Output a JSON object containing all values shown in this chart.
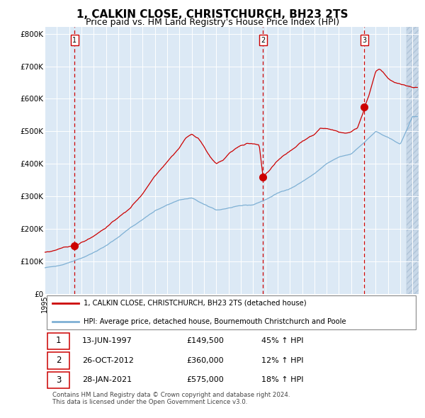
{
  "title": "1, CALKIN CLOSE, CHRISTCHURCH, BH23 2TS",
  "subtitle": "Price paid vs. HM Land Registry's House Price Index (HPI)",
  "ylabel_ticks": [
    "£0",
    "£100K",
    "£200K",
    "£300K",
    "£400K",
    "£500K",
    "£600K",
    "£700K",
    "£800K"
  ],
  "ytick_vals": [
    0,
    100000,
    200000,
    300000,
    400000,
    500000,
    600000,
    700000,
    800000
  ],
  "ylim": [
    0,
    820000
  ],
  "xlim_start": 1995.0,
  "xlim_end": 2025.5,
  "sale_dates": [
    1997.45,
    2012.82,
    2021.08
  ],
  "sale_prices": [
    149500,
    360000,
    575000
  ],
  "sale_labels": [
    "1",
    "2",
    "3"
  ],
  "sale_info": [
    {
      "num": "1",
      "date": "13-JUN-1997",
      "price": "£149,500",
      "hpi": "45% ↑ HPI"
    },
    {
      "num": "2",
      "date": "26-OCT-2012",
      "price": "£360,000",
      "hpi": "12% ↑ HPI"
    },
    {
      "num": "3",
      "date": "28-JAN-2021",
      "price": "£575,000",
      "hpi": "18% ↑ HPI"
    }
  ],
  "legend_property": "1, CALKIN CLOSE, CHRISTCHURCH, BH23 2TS (detached house)",
  "legend_hpi": "HPI: Average price, detached house, Bournemouth Christchurch and Poole",
  "footer": "Contains HM Land Registry data © Crown copyright and database right 2024.\nThis data is licensed under the Open Government Licence v3.0.",
  "plot_bg": "#dce9f5",
  "grid_color": "#ffffff",
  "red_line_color": "#cc0000",
  "blue_line_color": "#7eb0d4",
  "marker_color": "#cc0000",
  "vline_color": "#cc0000",
  "title_fontsize": 11,
  "subtitle_fontsize": 9,
  "tick_fontsize": 7.5
}
